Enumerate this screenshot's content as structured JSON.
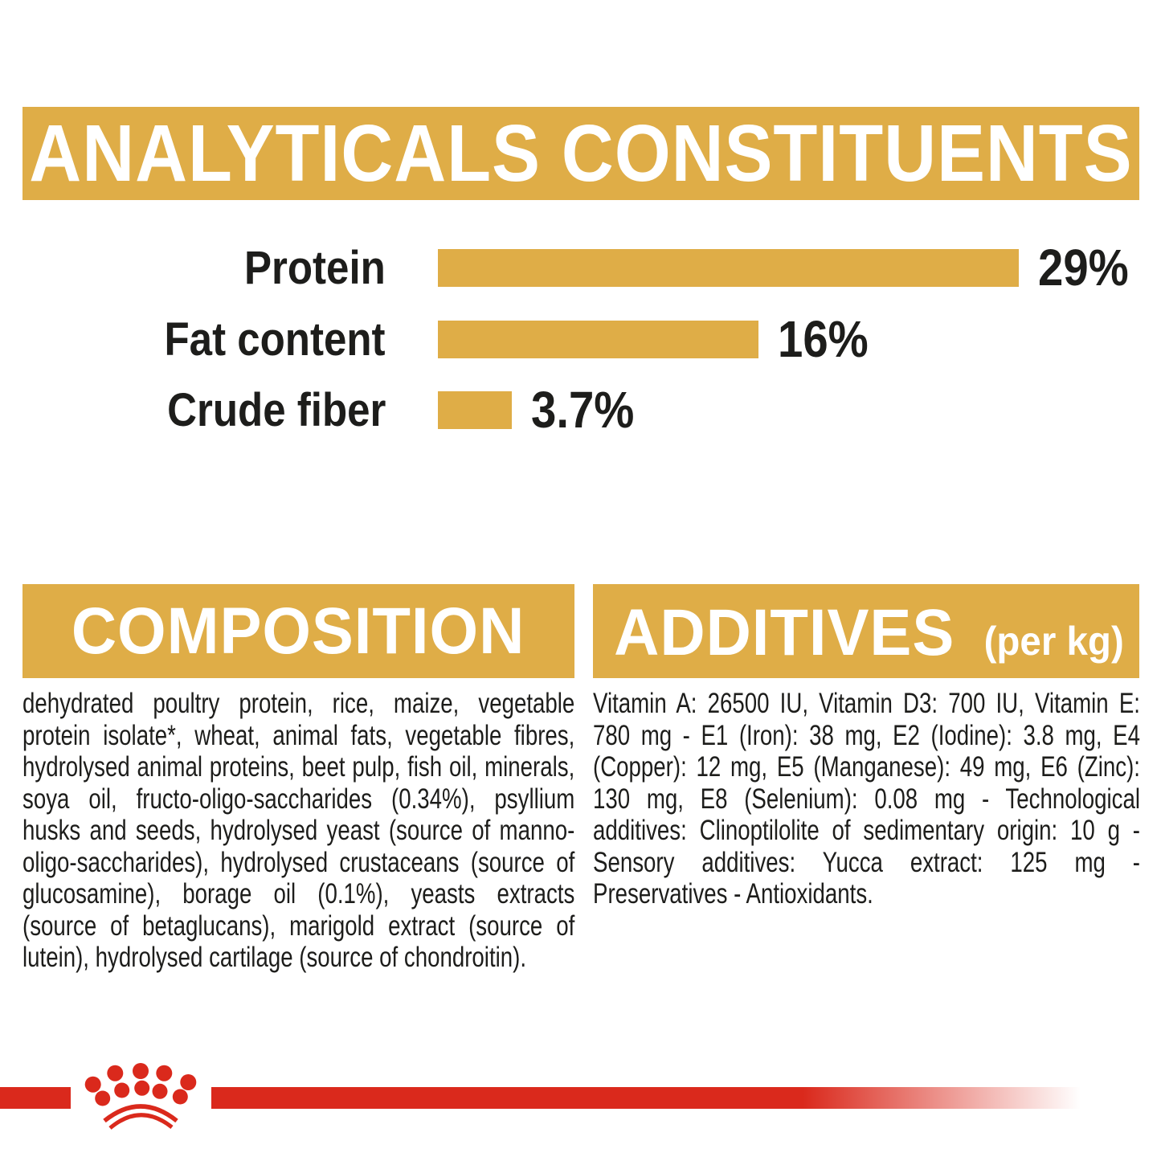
{
  "analyticals": {
    "title": "ANALYTICALS CONSTITUENTS"
  },
  "chart_data": {
    "type": "bar",
    "orientation": "horizontal",
    "title": "ANALYTICALS CONSTITUENTS",
    "categories": [
      "Protein",
      "Fat content",
      "Crude fiber"
    ],
    "values": [
      29,
      16,
      3.7
    ],
    "value_labels": [
      "29%",
      "16%",
      "3.7%"
    ],
    "xlim": [
      0,
      35
    ],
    "grid": false,
    "legend": "none",
    "bar_color": "#DFAD47",
    "label_color": "#1D1D1B"
  },
  "composition": {
    "title": "COMPOSITION",
    "text": "dehydrated poultry protein, rice, maize, vegetable protein isolate*, wheat, animal fats, vegetable fibres, hydrolysed animal proteins, beet pulp, fish oil, minerals, soya oil, fructo-oligo-saccharides (0.34%), psyllium husks and seeds, hydrolysed yeast (source of manno-oligo-saccharides), hydrolysed crustaceans (source of glucosamine), borage oil (0.1%), yeasts extracts (source of betaglucans), marigold extract (source of lutein), hydrolysed cartilage (source of chondroitin)."
  },
  "additives": {
    "title": "ADDITIVES",
    "unit_label": "(per kg)",
    "text": "Vitamin A: 26500 IU, Vitamin D3: 700 IU, Vitamin E: 780 mg - E1 (Iron): 38 mg, E2 (Iodine): 3.8 mg, E4 (Copper): 12 mg, E5 (Manganese): 49 mg, E6 (Zinc): 130 mg, E8 (Selenium): 0.08 mg - Technological additives: Clinoptilolite of sedimentary origin: 10 g - Sensory additives: Yucca extract: 125 mg - Preservatives - Antioxidants."
  },
  "footer": {
    "logo": "royal-canin-crown-logo"
  },
  "colors": {
    "gold": "#DFAD47",
    "red": "#DA291C",
    "text": "#1D1D1B",
    "banner_text": "#FFFFFF",
    "background": "#FFFFFF"
  }
}
